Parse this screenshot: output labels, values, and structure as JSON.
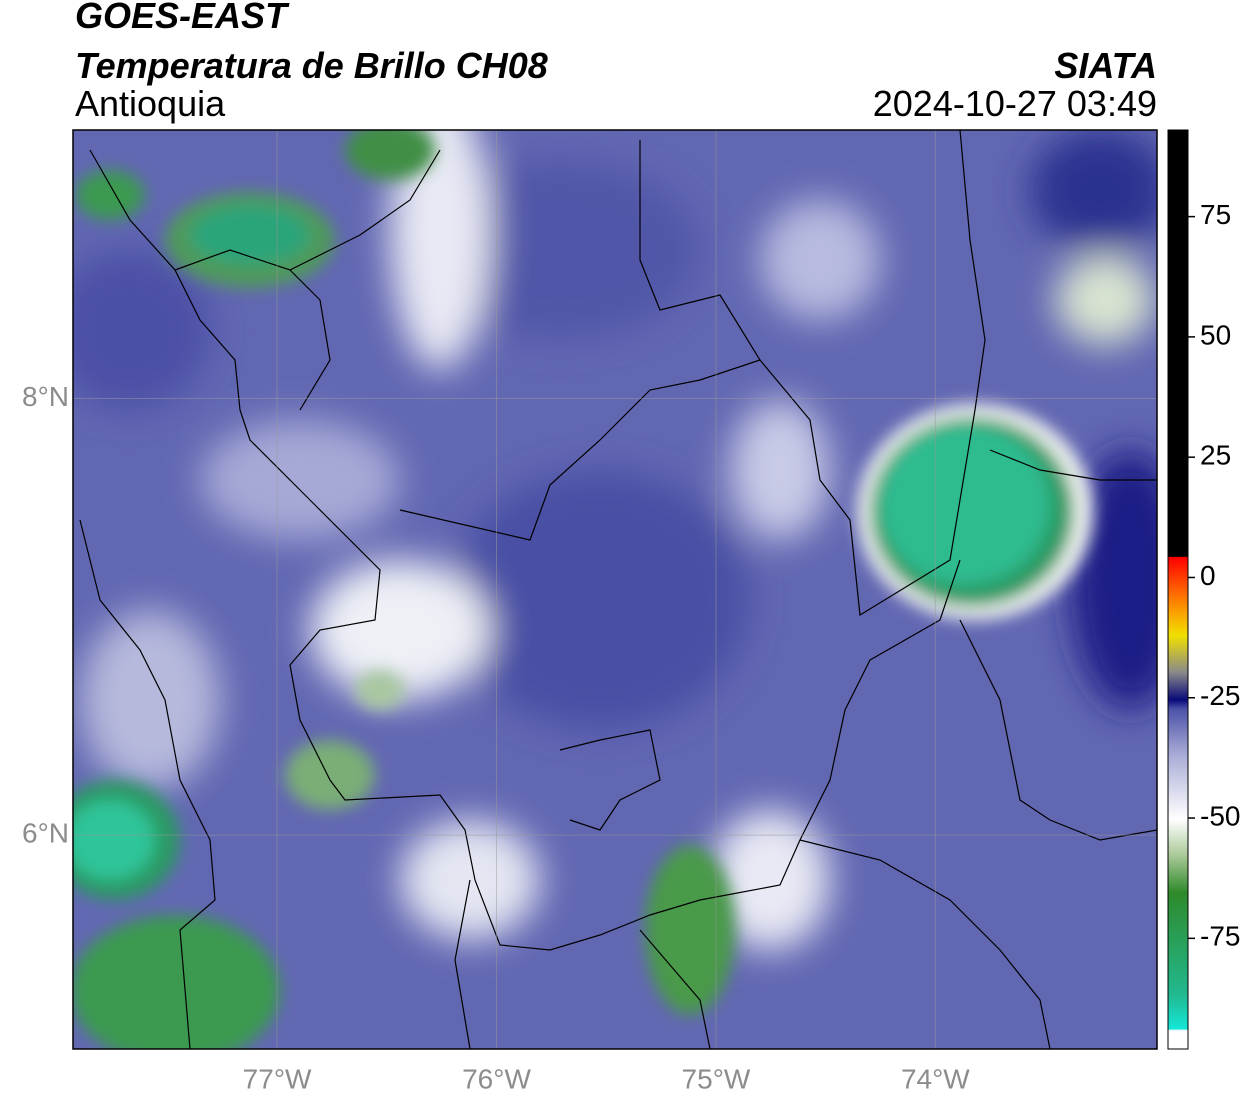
{
  "header": {
    "title": "GOES-EAST",
    "subtitle": "Temperatura de Brillo CH08",
    "region": "Antioquia",
    "source": "SIATA",
    "datetime": "2024-10-27 03:49"
  },
  "map": {
    "xlim": [
      -77.93,
      -72.99
    ],
    "ylim": [
      5.02,
      9.23
    ],
    "xticks": [
      {
        "value": -77,
        "label": "77°W"
      },
      {
        "value": -76,
        "label": "76°W"
      },
      {
        "value": -75,
        "label": "75°W"
      },
      {
        "value": -74,
        "label": "74°W"
      }
    ],
    "yticks": [
      {
        "value": 6,
        "label": "6°N"
      },
      {
        "value": 8,
        "label": "8°N"
      }
    ],
    "grid": true
  },
  "colorbar": {
    "lim": [
      -98,
      93
    ],
    "ticks": [
      -75,
      -50,
      -25,
      0,
      25,
      50,
      75
    ]
  }
}
